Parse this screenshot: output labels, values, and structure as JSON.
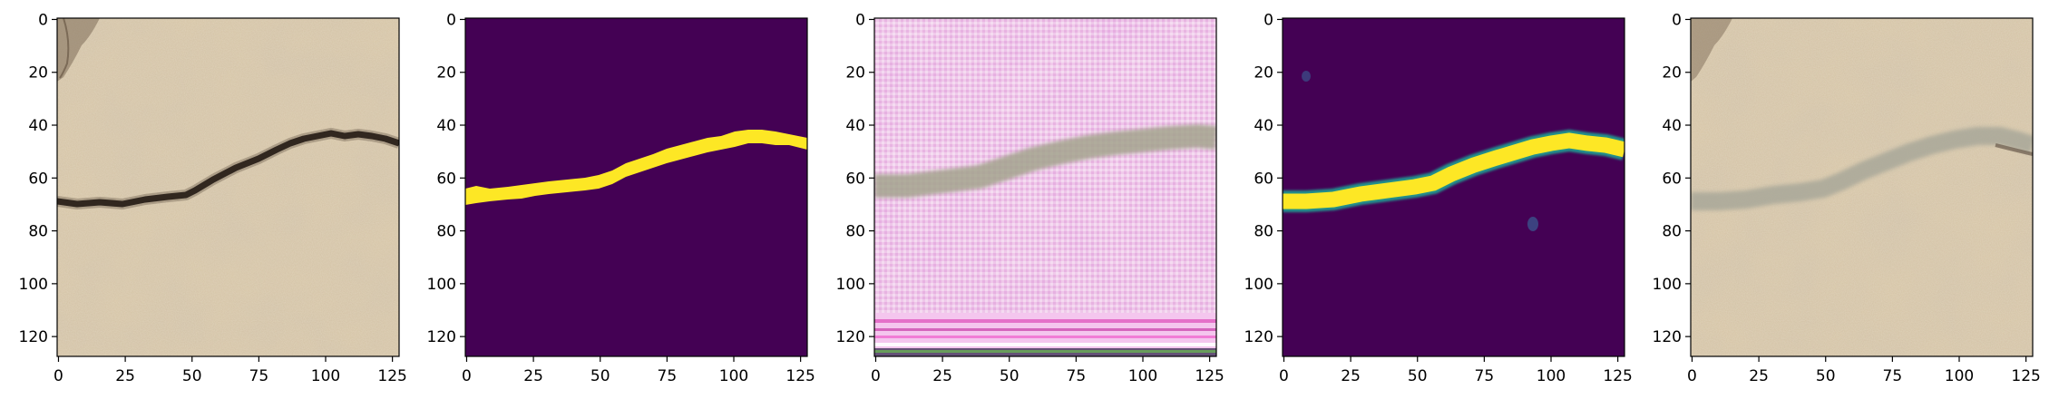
{
  "figure": {
    "panel_count": 5,
    "panels": [
      {
        "content": "crack-photo",
        "description_visible": "",
        "x_range": [
          0,
          127
        ],
        "y_range": [
          0,
          127
        ]
      },
      {
        "content": "ground-truth-mask",
        "x_range": [
          0,
          127
        ],
        "y_range": [
          0,
          127
        ]
      },
      {
        "content": "generated-image",
        "x_range": [
          0,
          127
        ],
        "y_range": [
          0,
          127
        ]
      },
      {
        "content": "predicted-mask",
        "x_range": [
          0,
          127
        ],
        "y_range": [
          0,
          127
        ]
      },
      {
        "content": "reconstructed-photo",
        "x_range": [
          0,
          127
        ],
        "y_range": [
          0,
          127
        ]
      }
    ],
    "x_ticks": [
      "0",
      "25",
      "50",
      "75",
      "100",
      "125"
    ],
    "y_ticks": [
      "0",
      "20",
      "40",
      "60",
      "80",
      "100",
      "120"
    ],
    "colors": {
      "mask_background": "#440154",
      "mask_foreground": "#fde725",
      "sand_base": "#d6c4a4",
      "crack": "#1c1410",
      "pink_base": "#eec2e6"
    }
  }
}
